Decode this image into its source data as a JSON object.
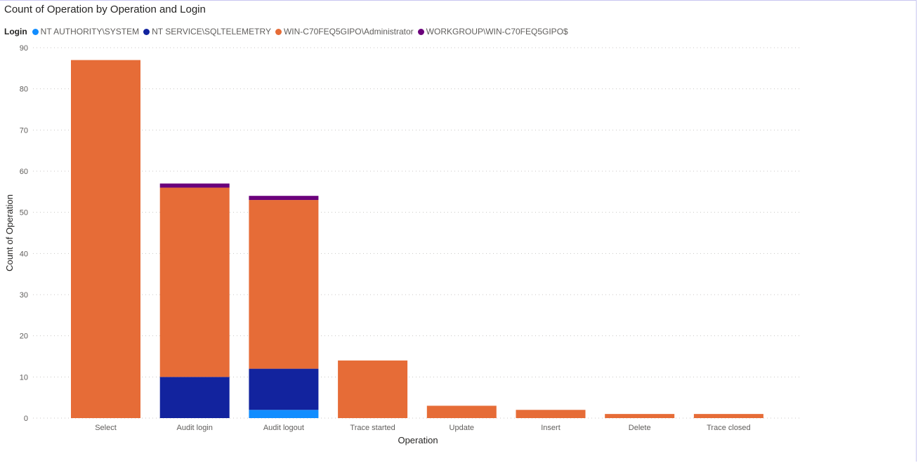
{
  "chart_data": {
    "type": "bar",
    "stacked": true,
    "title": "Count of Operation by Operation and Login",
    "xlabel": "Operation",
    "ylabel": "Count of Operation",
    "ylim": [
      0,
      90
    ],
    "yticks": [
      0,
      10,
      20,
      30,
      40,
      50,
      60,
      70,
      80,
      90
    ],
    "grid": true,
    "legend_title": "Login",
    "legend_position": "top-left",
    "categories": [
      "Select",
      "Audit login",
      "Audit logout",
      "Trace started",
      "Update",
      "Insert",
      "Delete",
      "Trace closed"
    ],
    "series": [
      {
        "name": "NT AUTHORITY\\SYSTEM",
        "color": "#118dff",
        "values": [
          0,
          0,
          2,
          0,
          0,
          0,
          0,
          0
        ]
      },
      {
        "name": "NT SERVICE\\SQLTELEMETRY",
        "color": "#12239e",
        "values": [
          0,
          10,
          10,
          0,
          0,
          0,
          0,
          0
        ]
      },
      {
        "name": "WIN-C70FEQ5GIPO\\Administrator",
        "color": "#e66c37",
        "values": [
          87,
          46,
          41,
          14,
          3,
          2,
          1,
          1
        ]
      },
      {
        "name": "WORKGROUP\\WIN-C70FEQ5GIPO$",
        "color": "#6b007b",
        "values": [
          0,
          1,
          1,
          0,
          0,
          0,
          0,
          0
        ]
      }
    ]
  }
}
